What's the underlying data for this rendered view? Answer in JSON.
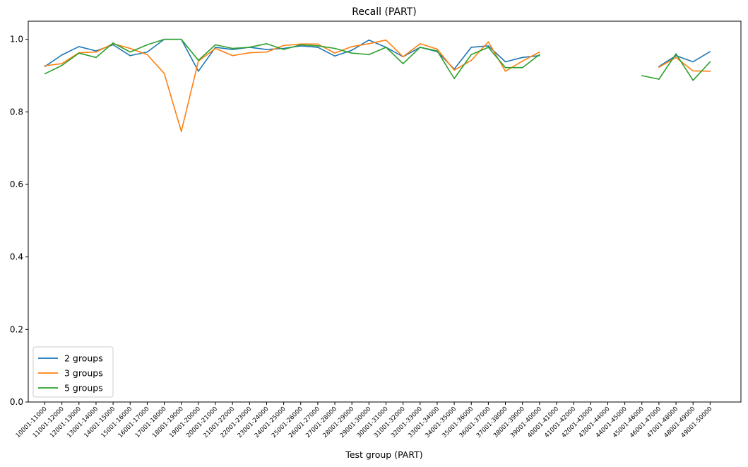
{
  "chart_data": {
    "type": "line",
    "title": "Recall (PART)",
    "xlabel": "Test group (PART)",
    "ylabel": "",
    "ylim": [
      0.0,
      1.05
    ],
    "yticks": [
      "0.0",
      "0.2",
      "0.4",
      "0.6",
      "0.8",
      "1.0"
    ],
    "grid": false,
    "legend_position": "lower-left",
    "categories": [
      "10001-11000",
      "11001-12000",
      "12001-13000",
      "13001-14000",
      "14001-15000",
      "15001-16000",
      "16001-17000",
      "17001-18000",
      "18001-19000",
      "19001-20000",
      "20001-21000",
      "21001-22000",
      "22001-23000",
      "23001-24000",
      "24001-25000",
      "25001-26000",
      "26001-27000",
      "27001-28000",
      "28001-29000",
      "29001-30000",
      "30001-31000",
      "31001-32000",
      "32001-33000",
      "33001-34000",
      "34001-35000",
      "35001-36000",
      "36001-37000",
      "37001-38000",
      "38001-39000",
      "39001-40000",
      "40001-41000",
      "41001-42000",
      "42001-43000",
      "43001-44000",
      "44001-45000",
      "45001-46000",
      "46001-47000",
      "47001-48000",
      "48001-49000",
      "49001-50000"
    ],
    "series": [
      {
        "name": "2 groups",
        "color": "#1f77b4",
        "values": [
          0.925,
          0.957,
          0.98,
          0.968,
          0.985,
          0.955,
          0.965,
          1.0,
          1.0,
          0.912,
          0.978,
          0.972,
          0.978,
          0.972,
          0.975,
          0.982,
          0.978,
          0.954,
          0.97,
          0.998,
          0.978,
          0.952,
          0.978,
          0.966,
          0.918,
          0.978,
          0.982,
          0.938,
          0.95,
          0.955,
          null,
          null,
          null,
          null,
          null,
          null,
          0.925,
          0.955,
          0.938,
          0.966
        ]
      },
      {
        "name": "3 groups",
        "color": "#ff7f0e",
        "values": [
          0.927,
          0.933,
          0.963,
          0.965,
          0.988,
          0.975,
          0.958,
          0.906,
          0.746,
          0.94,
          0.975,
          0.955,
          0.963,
          0.965,
          0.983,
          0.987,
          0.987,
          0.962,
          0.98,
          0.988,
          0.998,
          0.952,
          0.988,
          0.973,
          0.915,
          0.942,
          0.993,
          0.912,
          0.94,
          0.965,
          null,
          null,
          null,
          null,
          null,
          null,
          0.923,
          0.95,
          0.913,
          0.912
        ]
      },
      {
        "name": "5 groups",
        "color": "#2ca02c",
        "values": [
          0.905,
          0.928,
          0.962,
          0.95,
          0.99,
          0.965,
          0.985,
          1.0,
          1.0,
          0.942,
          0.985,
          0.975,
          0.978,
          0.988,
          0.972,
          0.985,
          0.982,
          0.975,
          0.962,
          0.958,
          0.978,
          0.933,
          0.978,
          0.968,
          0.892,
          0.958,
          0.978,
          0.922,
          0.922,
          0.958,
          null,
          null,
          null,
          null,
          null,
          0.9,
          0.89,
          0.96,
          0.887,
          0.938
        ]
      }
    ]
  }
}
